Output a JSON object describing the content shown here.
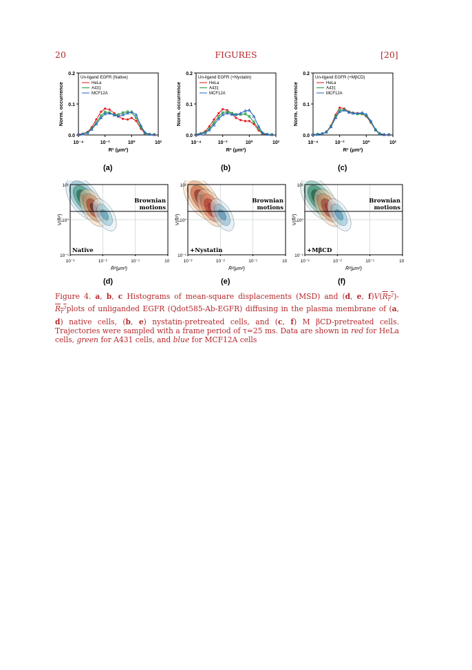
{
  "header": {
    "page_number": "20",
    "title": "FIGURES",
    "ref": "[20]"
  },
  "histograms": [
    {
      "legend_title": "Un-ligand EGFR (Native)",
      "label": "(a)"
    },
    {
      "legend_title": "Un-ligand EGFR (+Nystatin)",
      "label": "(b)"
    },
    {
      "legend_title": "Un-ligand EGFR (+MβCD)",
      "label": "(c)"
    }
  ],
  "hist_axes": {
    "ylabel": "Norm. occurrence",
    "xlabel": "R² (μm²)",
    "yticks": [
      "0.0",
      "0.1",
      "0.2"
    ],
    "xticks": [
      "10⁻⁴",
      "10⁻²",
      "10⁰",
      "10²"
    ]
  },
  "series_names": [
    "HeLa",
    "A431",
    "MCF12A"
  ],
  "contours": [
    {
      "condition": "Native",
      "label": "(d)"
    },
    {
      "condition": "+Nystatin",
      "label": "(e)"
    },
    {
      "condition": "+MβCD",
      "label": "(f)"
    }
  ],
  "contour_axes": {
    "ylabel": "V(R̄²)",
    "xlabel": "R̄²(μm²)",
    "region_label": "Brownian motions",
    "yticks": [
      "10¹",
      "10⁰",
      "10⁻¹"
    ],
    "xticks": [
      "10⁻³",
      "10⁻²",
      "10⁻¹",
      "10⁰"
    ]
  },
  "caption": {
    "prefix": "Figure 4.",
    "text1": "Histograms of mean-square displacements (MSD) and",
    "text2": "plots of unliganded EGFR (Qdot585-Ab-EGFR) diffusing in the plasma membrane of",
    "text3": "native cells,",
    "text4": "nystatin-pretreated cells, and",
    "text5": "M βCD-pretreated cells. Trajectories were sampled with a frame period of τ=25 ms. Data are shown in",
    "red": "red",
    "text6": "for HeLa cells,",
    "green": "green",
    "text7": "for A431 cells, and",
    "blue": "blue",
    "text8": "for MCF12A cells"
  },
  "chart_data": [
    {
      "type": "line",
      "title": "Un-ligand EGFR (Native)",
      "xlabel": "R² (μm²)",
      "ylabel": "Norm. occurrence",
      "xscale": "log",
      "xlim": [
        0.0001,
        100
      ],
      "ylim": [
        0,
        0.2
      ],
      "x": [
        0.0001,
        0.00022,
        0.0005,
        0.001,
        0.0022,
        0.005,
        0.01,
        0.022,
        0.05,
        0.1,
        0.22,
        0.5,
        1,
        2.2,
        5,
        10,
        22,
        50
      ],
      "series": [
        {
          "name": "HeLa",
          "color": "#e8232a",
          "values": [
            0.002,
            0.004,
            0.01,
            0.025,
            0.05,
            0.075,
            0.085,
            0.082,
            0.07,
            0.06,
            0.052,
            0.05,
            0.055,
            0.045,
            0.02,
            0.005,
            0.002,
            0.001
          ]
        },
        {
          "name": "A431",
          "color": "#2e9a3d",
          "values": [
            0.001,
            0.003,
            0.008,
            0.02,
            0.04,
            0.062,
            0.074,
            0.072,
            0.065,
            0.066,
            0.072,
            0.075,
            0.072,
            0.055,
            0.025,
            0.006,
            0.002,
            0.001
          ]
        },
        {
          "name": "MCF12A",
          "color": "#2f6ec4",
          "values": [
            0.001,
            0.003,
            0.007,
            0.018,
            0.035,
            0.055,
            0.068,
            0.07,
            0.064,
            0.06,
            0.065,
            0.07,
            0.075,
            0.065,
            0.03,
            0.008,
            0.002,
            0.001
          ]
        }
      ]
    },
    {
      "type": "line",
      "title": "Un-ligand EGFR (+Nystatin)",
      "xlabel": "R² (μm²)",
      "ylabel": "Norm. occurrence",
      "xscale": "log",
      "xlim": [
        0.0001,
        100
      ],
      "ylim": [
        0,
        0.2
      ],
      "x": [
        0.0001,
        0.00022,
        0.0005,
        0.001,
        0.0022,
        0.005,
        0.01,
        0.022,
        0.05,
        0.1,
        0.22,
        0.5,
        1,
        2.2,
        5,
        10,
        22,
        50
      ],
      "series": [
        {
          "name": "HeLa",
          "color": "#e8232a",
          "values": [
            0.002,
            0.005,
            0.012,
            0.028,
            0.05,
            0.07,
            0.083,
            0.08,
            0.068,
            0.055,
            0.048,
            0.045,
            0.045,
            0.035,
            0.015,
            0.004,
            0.001,
            0.001
          ]
        },
        {
          "name": "A431",
          "color": "#2e9a3d",
          "values": [
            0.001,
            0.004,
            0.009,
            0.02,
            0.04,
            0.06,
            0.072,
            0.075,
            0.07,
            0.066,
            0.066,
            0.068,
            0.06,
            0.042,
            0.02,
            0.005,
            0.002,
            0.001
          ]
        },
        {
          "name": "MCF12A",
          "color": "#2f6ec4",
          "values": [
            0.001,
            0.003,
            0.007,
            0.016,
            0.032,
            0.052,
            0.065,
            0.07,
            0.066,
            0.065,
            0.07,
            0.078,
            0.08,
            0.06,
            0.028,
            0.007,
            0.002,
            0.001
          ]
        }
      ]
    },
    {
      "type": "line",
      "title": "Un-ligand EGFR (+MβCD)",
      "xlabel": "R² (μm²)",
      "ylabel": "Norm. occurrence",
      "xscale": "log",
      "xlim": [
        0.0001,
        100
      ],
      "ylim": [
        0,
        0.2
      ],
      "x": [
        0.0001,
        0.00022,
        0.0005,
        0.001,
        0.0022,
        0.005,
        0.01,
        0.022,
        0.05,
        0.1,
        0.22,
        0.5,
        1,
        2.2,
        5,
        10,
        22,
        50
      ],
      "series": [
        {
          "name": "HeLa",
          "color": "#e8232a",
          "values": [
            0.001,
            0.002,
            0.004,
            0.01,
            0.03,
            0.065,
            0.088,
            0.085,
            0.075,
            0.072,
            0.07,
            0.068,
            0.06,
            0.04,
            0.015,
            0.004,
            0.001,
            0.001
          ]
        },
        {
          "name": "A431",
          "color": "#2e9a3d",
          "values": [
            0.001,
            0.002,
            0.004,
            0.01,
            0.028,
            0.06,
            0.08,
            0.082,
            0.074,
            0.07,
            0.068,
            0.068,
            0.062,
            0.042,
            0.016,
            0.004,
            0.001,
            0.001
          ]
        },
        {
          "name": "MCF12A",
          "color": "#2f6ec4",
          "values": [
            0.001,
            0.002,
            0.004,
            0.009,
            0.026,
            0.055,
            0.075,
            0.08,
            0.073,
            0.07,
            0.07,
            0.072,
            0.066,
            0.045,
            0.018,
            0.005,
            0.001,
            0.001
          ]
        }
      ]
    }
  ]
}
